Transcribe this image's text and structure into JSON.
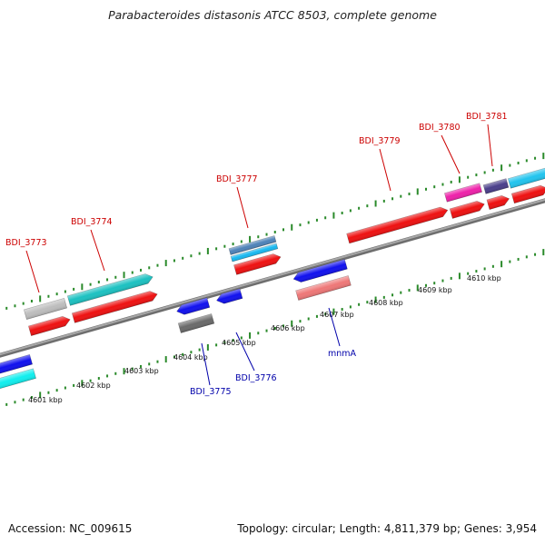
{
  "title": "Parabacteroides distasonis ATCC 8503, complete genome",
  "footer": {
    "accession": "Accession: NC_009615",
    "summary": "Topology: circular; Length: 4,811,379 bp; Genes: 3,954"
  },
  "colors": {
    "upper_label": "#cc0000",
    "lower_label": "#0000aa",
    "backbone": "#8a8a8a",
    "ruler_ticks": "#2a8a2a"
  },
  "ruler_labels": [
    "4601 kbp",
    "4602 kbp",
    "4603 kbp",
    "4604 kbp",
    "4605 kbp",
    "4606 kbp",
    "4607 kbp",
    "4608 kbp",
    "4609 kbp",
    "4610 kbp"
  ],
  "gene_labels_upper": [
    "BDI_3773",
    "BDI_3774",
    "BDI_3777",
    "BDI_3779",
    "BDI_3780",
    "BDI_3781"
  ],
  "gene_labels_lower": [
    "BDI_3775",
    "BDI_3776",
    "mnmA"
  ],
  "upper_features": [
    {
      "name": "feature-gray",
      "color": "#bdbdbd"
    },
    {
      "name": "feature-teal",
      "color": "#1cc1c1"
    },
    {
      "name": "feature-steelblue",
      "color": "#4f82b8"
    },
    {
      "name": "feature-skyblue",
      "color": "#18b8f0"
    },
    {
      "name": "feature-magenta",
      "color": "#ee22aa"
    },
    {
      "name": "feature-darkslate",
      "color": "#4a3f8a"
    },
    {
      "name": "feature-lightblue",
      "color": "#22c4ee"
    }
  ],
  "upper_cds_color": "#ee1111",
  "lower_features": [
    {
      "name": "feature-blue",
      "color": "#1111ee"
    },
    {
      "name": "feature-cyan",
      "color": "#11eeee"
    },
    {
      "name": "feature-darkgray",
      "color": "#6a6a6a"
    },
    {
      "name": "feature-salmon",
      "color": "#ee7777"
    }
  ]
}
